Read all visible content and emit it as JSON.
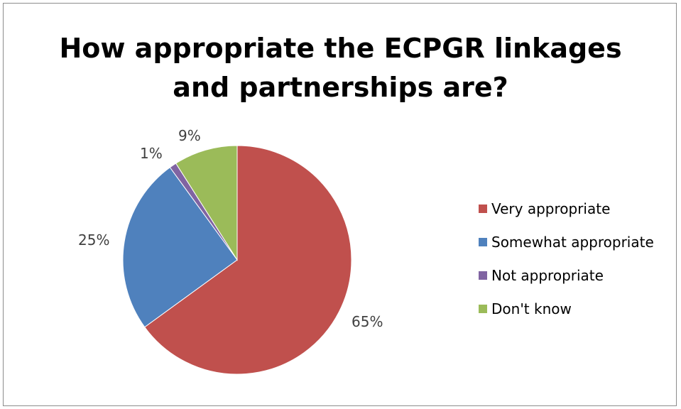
{
  "chart_data": {
    "type": "pie",
    "title_lines": [
      "How appropriate the ECPGR linkages",
      "and partnerships are?"
    ],
    "categories": [
      "Very appropriate",
      "Somewhat appropriate",
      "Not appropriate",
      "Don't know"
    ],
    "values": [
      65,
      25,
      1,
      9
    ],
    "data_labels": [
      "65%",
      "25%",
      "1%",
      "9%"
    ],
    "colors": [
      "#C0504D",
      "#4F81BD",
      "#8064A2",
      "#9BBB59"
    ],
    "legend_position": "right",
    "start": "top, clockwise"
  }
}
